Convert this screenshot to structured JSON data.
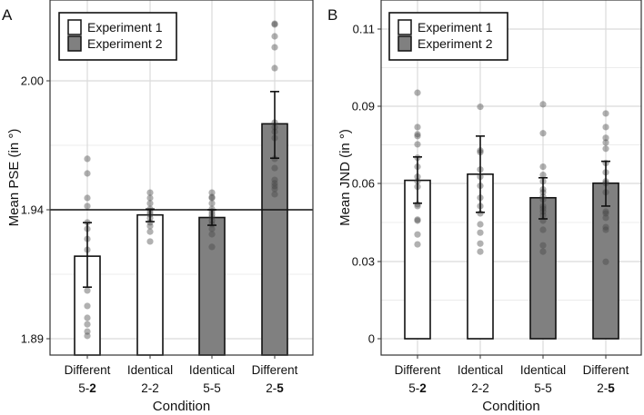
{
  "chart_data": [
    {
      "panel_label": "A",
      "type": "bar",
      "ylabel": "Mean PSE (in °)",
      "xlabel": "Condition",
      "yticks": [
        1.89,
        1.94,
        2.0
      ],
      "ytick_labels": [
        "1.89",
        "1.94",
        "2.00"
      ],
      "reference_line": 1.94,
      "grid": true,
      "legend": {
        "placement": "top-left",
        "entries": [
          {
            "label": "Experiment 1",
            "fill": "#ffffff"
          },
          {
            "label": "Experiment 2",
            "fill": "#808080"
          }
        ]
      },
      "categories": [
        {
          "line1": "Different",
          "line2_normal": "5-",
          "line2_bold": "2",
          "experiment": 1
        },
        {
          "line1": "Identical",
          "line2_normal": "2-2",
          "line2_bold": "",
          "experiment": 1
        },
        {
          "line1": "Identical",
          "line2_normal": "5-5",
          "line2_bold": "",
          "experiment": 2
        },
        {
          "line1": "Different",
          "line2_normal": "2-",
          "line2_bold": "5",
          "experiment": 2
        }
      ],
      "means": [
        1.922,
        1.938,
        1.937,
        1.98
      ],
      "error_low": [
        1.91,
        1.9354,
        1.934,
        1.964
      ],
      "error_high": [
        1.935,
        1.9403,
        1.94,
        1.995
      ],
      "points": [
        [
          1.9637,
          1.9569,
          1.9455,
          1.9417,
          1.9351,
          1.9326,
          1.9287,
          1.9245,
          1.9087,
          1.9027,
          1.8981,
          1.8956,
          1.8928,
          1.8911
        ],
        [
          1.948,
          1.9455,
          1.943,
          1.9404,
          1.9393,
          1.9382,
          1.9368,
          1.9351,
          1.9337,
          1.9315,
          1.9277
        ],
        [
          1.948,
          1.9459,
          1.9455,
          1.943,
          1.9404,
          1.9393,
          1.9382,
          1.9372,
          1.9358,
          1.9344,
          1.9326,
          1.9305,
          1.9256
        ],
        [
          2.0266,
          2.0262,
          2.0207,
          2.0156,
          2.0059,
          1.9806,
          1.9784,
          1.9763,
          1.9734,
          1.9637,
          1.9594,
          1.9539,
          1.9523,
          1.951,
          1.9497,
          1.9472
        ]
      ]
    },
    {
      "panel_label": "B",
      "type": "bar",
      "ylabel": "Mean JND (in °)",
      "xlabel": "Condition",
      "yticks": [
        0,
        0.03,
        0.06,
        0.09,
        0.11
      ],
      "ytick_labels": [
        "0",
        "0.03",
        "0.06",
        "0.09",
        "0.11"
      ],
      "grid": true,
      "legend": {
        "placement": "top-left",
        "entries": [
          {
            "label": "Experiment 1",
            "fill": "#ffffff"
          },
          {
            "label": "Experiment 2",
            "fill": "#808080"
          }
        ]
      },
      "categories": [
        {
          "line1": "Different",
          "line2_normal": "5-",
          "line2_bold": "2",
          "experiment": 1
        },
        {
          "line1": "Identical",
          "line2_normal": "2-2",
          "line2_bold": "",
          "experiment": 1
        },
        {
          "line1": "Identical",
          "line2_normal": "5-5",
          "line2_bold": "",
          "experiment": 2
        },
        {
          "line1": "Different",
          "line2_normal": "2-",
          "line2_bold": "5",
          "experiment": 2
        }
      ],
      "means": [
        0.0612,
        0.0636,
        0.0545,
        0.0601
      ],
      "error_low": [
        0.0524,
        0.0489,
        0.0464,
        0.0513
      ],
      "error_high": [
        0.0703,
        0.0784,
        0.0622,
        0.0686
      ],
      "points": [
        [
          0.0935,
          0.0819,
          0.0791,
          0.0784,
          0.0752,
          0.07,
          0.0665,
          0.0626,
          0.0608,
          0.0587,
          0.052,
          0.0513,
          0.0461,
          0.0457,
          0.0404,
          0.0366
        ],
        [
          0.0898,
          0.0728,
          0.0721,
          0.0654,
          0.0626,
          0.0591,
          0.0545,
          0.0513,
          0.0485,
          0.0443,
          0.0411,
          0.0369,
          0.0338
        ],
        [
          0.0905,
          0.0795,
          0.0665,
          0.0633,
          0.0608,
          0.0577,
          0.0566,
          0.0549,
          0.0538,
          0.0513,
          0.0503,
          0.0492,
          0.0478,
          0.0457,
          0.0422,
          0.0362,
          0.0338
        ],
        [
          0.0872,
          0.0819,
          0.0777,
          0.0759,
          0.0735,
          0.0679,
          0.0643,
          0.0608,
          0.0601,
          0.0566,
          0.0492,
          0.0485,
          0.0468,
          0.0432,
          0.0422,
          0.0299
        ]
      ]
    }
  ]
}
